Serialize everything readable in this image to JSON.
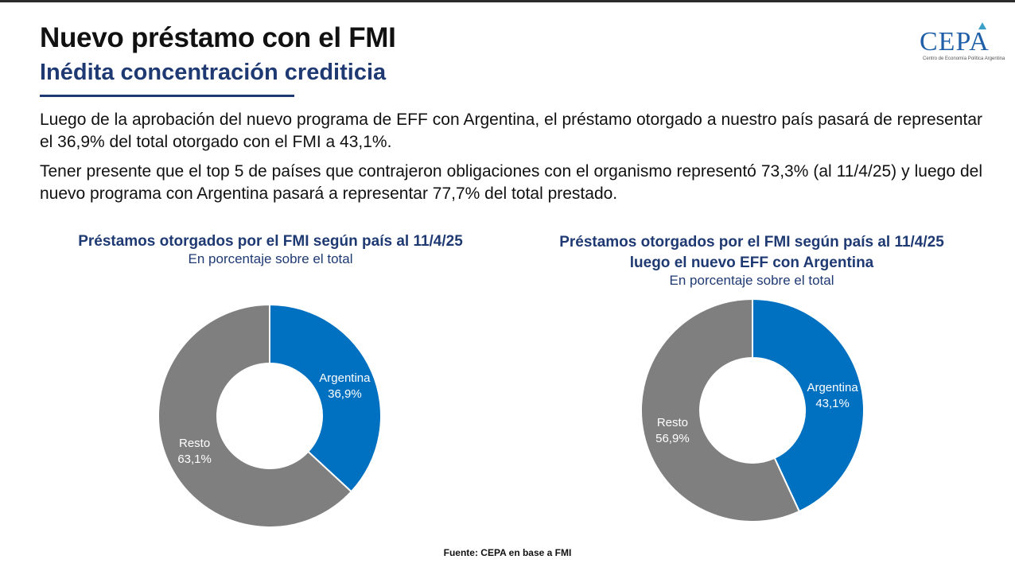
{
  "header": {
    "title": "Nuevo préstamo con el FMI",
    "subtitle": "Inédita concentración crediticia"
  },
  "logo": {
    "text": "CEPA",
    "tagline": "Centro de Economía Política Argentina"
  },
  "paragraphs": [
    "Luego de la aprobación del nuevo programa de EFF con Argentina, el préstamo otorgado a nuestro país pasará de representar el 36,9% del total otorgado con el FMI a 43,1%.",
    "Tener presente que el top 5 de países que contrajeron obligaciones con el organismo representó 73,3% (al 11/4/25) y luego del nuevo programa con Argentina pasará a representar 77,7% del total prestado."
  ],
  "colors": {
    "argentina": "#0070c0",
    "resto": "#7f7f7f",
    "title_blue": "#1f3a73"
  },
  "chart_data": [
    {
      "type": "pie",
      "title": "Préstamos otorgados por el FMI según país al 11/4/25",
      "subtitle": "En porcentaje sobre el total",
      "categories": [
        "Argentina",
        "Resto"
      ],
      "values": [
        36.9,
        63.1
      ],
      "value_labels": [
        "36,9%",
        "63,1%"
      ]
    },
    {
      "type": "pie",
      "title": "Préstamos otorgados por el FMI según país al 11/4/25 luego el nuevo EFF con Argentina",
      "title_lines": [
        "Préstamos otorgados por el FMI según país al 11/4/25",
        "luego el nuevo EFF con Argentina"
      ],
      "subtitle": "En porcentaje sobre el total",
      "categories": [
        "Argentina",
        "Resto"
      ],
      "values": [
        43.1,
        56.9
      ],
      "value_labels": [
        "43,1%",
        "56,9%"
      ]
    }
  ],
  "footer": {
    "source": "Fuente: CEPA en base a FMI"
  }
}
